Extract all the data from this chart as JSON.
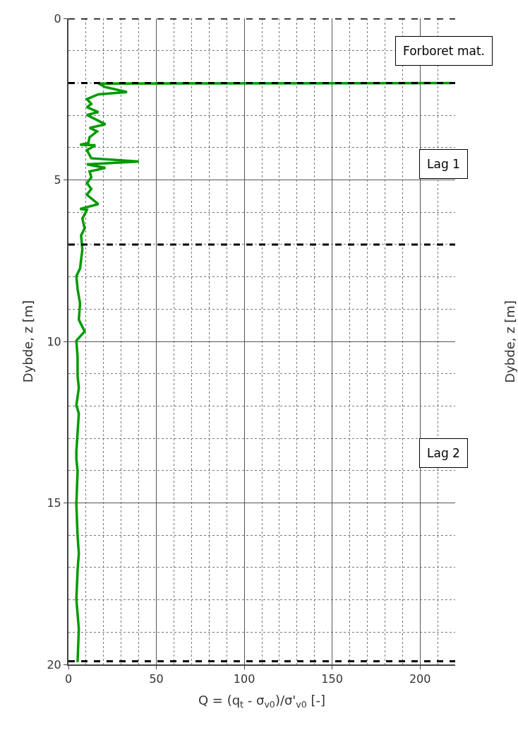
{
  "chart_data": {
    "type": "line",
    "xlabel": "Q = (q$_{t}$ - σ$_{v0}$)/σ'$_{v0}$ [-]",
    "ylabel": "Dybde, z [m]",
    "y2label": "Dybde, z [m]",
    "x": [
      218,
      17.2,
      20.6,
      33.3,
      17,
      10.5,
      13,
      10.5,
      17,
      10.5,
      14.5,
      21,
      12,
      16.3,
      12,
      11.3,
      6.6,
      15.3,
      10.5,
      13,
      40,
      10.5,
      21,
      12,
      13,
      10.5,
      13,
      10.5,
      17,
      6.6,
      10.5,
      7.9,
      9.2,
      7.2,
      7.9,
      6.6,
      4.5,
      5.2,
      6.6,
      5.9,
      9.2,
      4.5,
      5.2,
      5.2,
      5.9,
      4.5,
      5.9,
      5.2,
      4.5,
      4.5,
      5.2,
      4.5,
      5.2,
      5.9,
      5.2,
      4.5,
      5.9,
      5.2
    ],
    "series": [
      {
        "color": "#009a00",
        "values": [
          2.0,
          2.02,
          2.12,
          2.28,
          2.35,
          2.5,
          2.65,
          2.75,
          2.9,
          2.99,
          3.1,
          3.28,
          3.39,
          3.5,
          3.68,
          3.86,
          3.91,
          3.93,
          4.08,
          4.33,
          4.43,
          4.52,
          4.63,
          4.74,
          4.92,
          5.1,
          5.28,
          5.46,
          5.75,
          5.9,
          5.93,
          6.2,
          6.5,
          6.72,
          7.16,
          7.74,
          7.98,
          8.38,
          8.82,
          9.33,
          9.69,
          9.98,
          10.49,
          11.07,
          11.44,
          11.98,
          12.23,
          12.82,
          13.4,
          13.63,
          14.02,
          15.04,
          16.02,
          16.57,
          17.08,
          17.99,
          18.9,
          19.93
        ]
      }
    ],
    "xlim": [
      0,
      220
    ],
    "xticks": [
      0,
      50,
      100,
      150,
      200
    ],
    "ylim": [
      20,
      0
    ],
    "yticks": [
      0,
      5,
      10,
      15,
      20
    ],
    "grid": true,
    "marker": "none",
    "line_style": "solid",
    "ref_lines": [
      {
        "axis": "y",
        "value": 0,
        "color": "#000000",
        "line_style": "dashed"
      },
      {
        "axis": "y",
        "value": 2,
        "color": "#000000",
        "line_style": "dashed"
      },
      {
        "axis": "y",
        "value": 7,
        "color": "#000000",
        "line_style": "dashed"
      },
      {
        "axis": "y",
        "value": 19.9,
        "color": "#000000",
        "line_style": "dashed"
      }
    ],
    "annotations": [
      "Forboret mat.",
      "Lag 1",
      "Lag 2"
    ]
  }
}
